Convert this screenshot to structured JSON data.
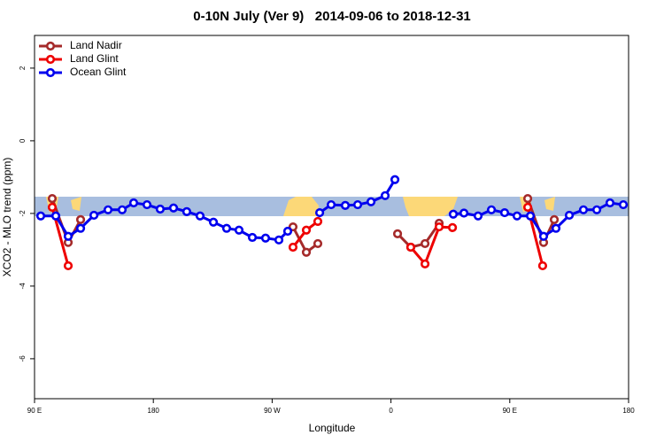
{
  "chart_data": {
    "type": "line",
    "title": "0-10N July (Ver 9)   2014-09-06 to 2018-12-31",
    "x_label": "Longitude",
    "y_label": "XCO2 - MLO trend (ppm)",
    "xlim": [
      90,
      540
    ],
    "ylim": [
      -7.1,
      2.9
    ],
    "xticks": [
      {
        "value": 90,
        "label": "90 E"
      },
      180,
      {
        "value": 270,
        "label": "90 W"
      },
      {
        "value": 360,
        "label": "0"
      },
      {
        "value": 450,
        "label": "90 E"
      },
      {
        "value": 540,
        "label": "180"
      }
    ],
    "yticks": [
      2,
      0,
      -2,
      -4,
      -6
    ],
    "legend": "top-left",
    "series": [
      {
        "name": "Land Nadir",
        "color": "#a52a2a",
        "x": [
          103.4,
          115.5,
          124.9,
          null,
          285.8,
          295.9,
          304.6,
          null,
          365.0,
          375.0,
          385.8,
          396.5,
          null,
          463.6,
          475.6,
          483.7
        ],
        "values": [
          -1.59,
          -2.8,
          -2.17,
          null,
          -2.37,
          -3.07,
          -2.83,
          null,
          -2.56,
          -2.93,
          -2.83,
          -2.27,
          null,
          -1.59,
          -2.8,
          -2.17
        ]
      },
      {
        "name": "Land Glint",
        "color": "#ee0000",
        "x": [
          103.4,
          115.5,
          null,
          285.8,
          295.9,
          304.6,
          null,
          375.0,
          385.8,
          396.5,
          406.6,
          null,
          463.6,
          474.9
        ],
        "values": [
          -1.83,
          -3.44,
          null,
          -2.93,
          -2.46,
          -2.22,
          null,
          -2.93,
          -3.39,
          -2.37,
          -2.39,
          null,
          -1.83,
          -3.44
        ]
      },
      {
        "name": "Ocean Glint",
        "color": "#0000ee",
        "x": [
          94.7,
          106.1,
          115.5,
          124.9,
          135.0,
          145.7,
          156.4,
          165.1,
          175.2,
          185.2,
          195.3,
          205.3,
          215.4,
          225.5,
          235.5,
          244.9,
          255.0,
          265.0,
          275.1,
          281.8,
          null,
          306.0,
          314.7,
          325.4,
          334.8,
          344.9,
          355.6,
          363.0,
          null,
          407.2,
          415.3,
          426.0,
          436.1,
          446.1,
          455.5,
          465.6,
          475.6,
          485.0,
          495.1,
          505.8,
          515.9,
          525.9,
          536.0
        ],
        "values": [
          -2.07,
          -2.07,
          -2.63,
          -2.41,
          -2.05,
          -1.9,
          -1.9,
          -1.71,
          -1.76,
          -1.88,
          -1.85,
          -1.95,
          -2.07,
          -2.24,
          -2.41,
          -2.46,
          -2.66,
          -2.68,
          -2.73,
          -2.49,
          null,
          -1.98,
          -1.76,
          -1.78,
          -1.76,
          -1.68,
          -1.51,
          -1.07,
          null,
          -2.02,
          -1.99,
          -2.07,
          -1.9,
          -1.98,
          -2.07,
          -2.07,
          -2.63,
          -2.41,
          -2.05,
          -1.9,
          -1.9,
          -1.71,
          -1.76
        ]
      }
    ]
  }
}
